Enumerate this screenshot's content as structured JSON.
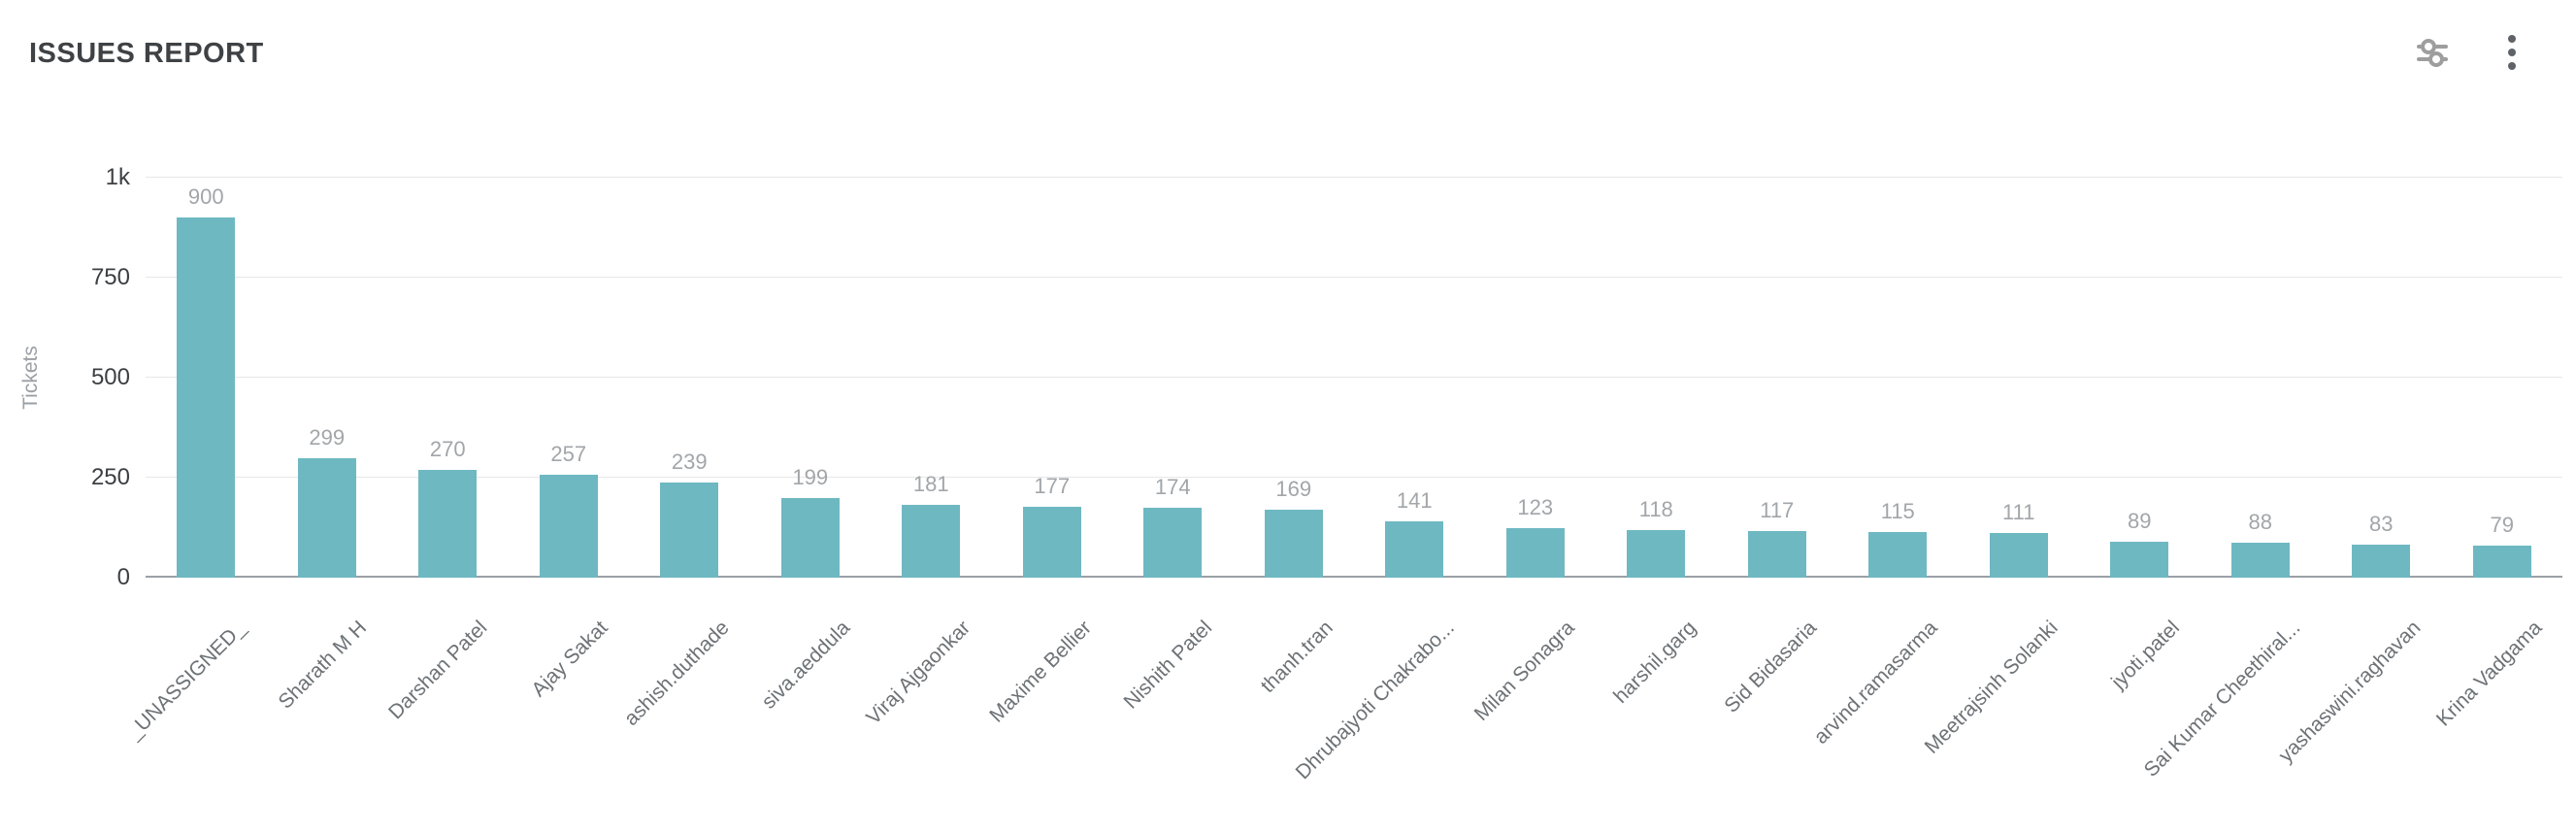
{
  "header": {
    "title": "ISSUES REPORT",
    "actions": [
      {
        "icon": "filter-sliders-icon",
        "name": "filter-sliders-button"
      },
      {
        "icon": "kebab-menu-icon",
        "name": "more-options-button"
      }
    ]
  },
  "colors": {
    "bar": "#6eb8c2",
    "gridline": "#e7e7e7",
    "baseline": "#9aa0a6",
    "value_label": "#a2a6a9",
    "x_label": "#6d7276",
    "y_tick": "#3c4043",
    "y_title": "#9aa0a6",
    "title": "#3f4245",
    "sliders_icon": "#9e9e9e",
    "kebab_icon": "#5f6368"
  },
  "chart_data": {
    "type": "bar",
    "title": "ISSUES REPORT",
    "xlabel": "",
    "ylabel": "Tickets",
    "ylim": [
      0,
      1000
    ],
    "grid": true,
    "legend_position": "none",
    "yticks": [
      {
        "value": 0,
        "label": "0"
      },
      {
        "value": 250,
        "label": "250"
      },
      {
        "value": 500,
        "label": "500"
      },
      {
        "value": 750,
        "label": "750"
      },
      {
        "value": 1000,
        "label": "1k"
      }
    ],
    "categories": [
      "_UNASSIGNED_",
      "Sharath M H",
      "Darshan Patel",
      "Ajay Sakat",
      "ashish.duthade",
      "siva.aeddula",
      "Viraj Ajgaonkar",
      "Maxime Bellier",
      "Nishith Patel",
      "thanh.tran",
      "Dhrubajyoti Chakrabo...",
      "Milan Sonagra",
      "harshil.garg",
      "Sid Bidasaria",
      "arvind.ramasarma",
      "Meetrajsinh Solanki",
      "jyoti.patel",
      "Sai Kumar Cheethiral...",
      "yashaswini.raghavan",
      "Krina Vadgama"
    ],
    "values": [
      900,
      299,
      270,
      257,
      239,
      199,
      181,
      177,
      174,
      169,
      141,
      123,
      118,
      117,
      115,
      111,
      89,
      88,
      83,
      79
    ]
  }
}
